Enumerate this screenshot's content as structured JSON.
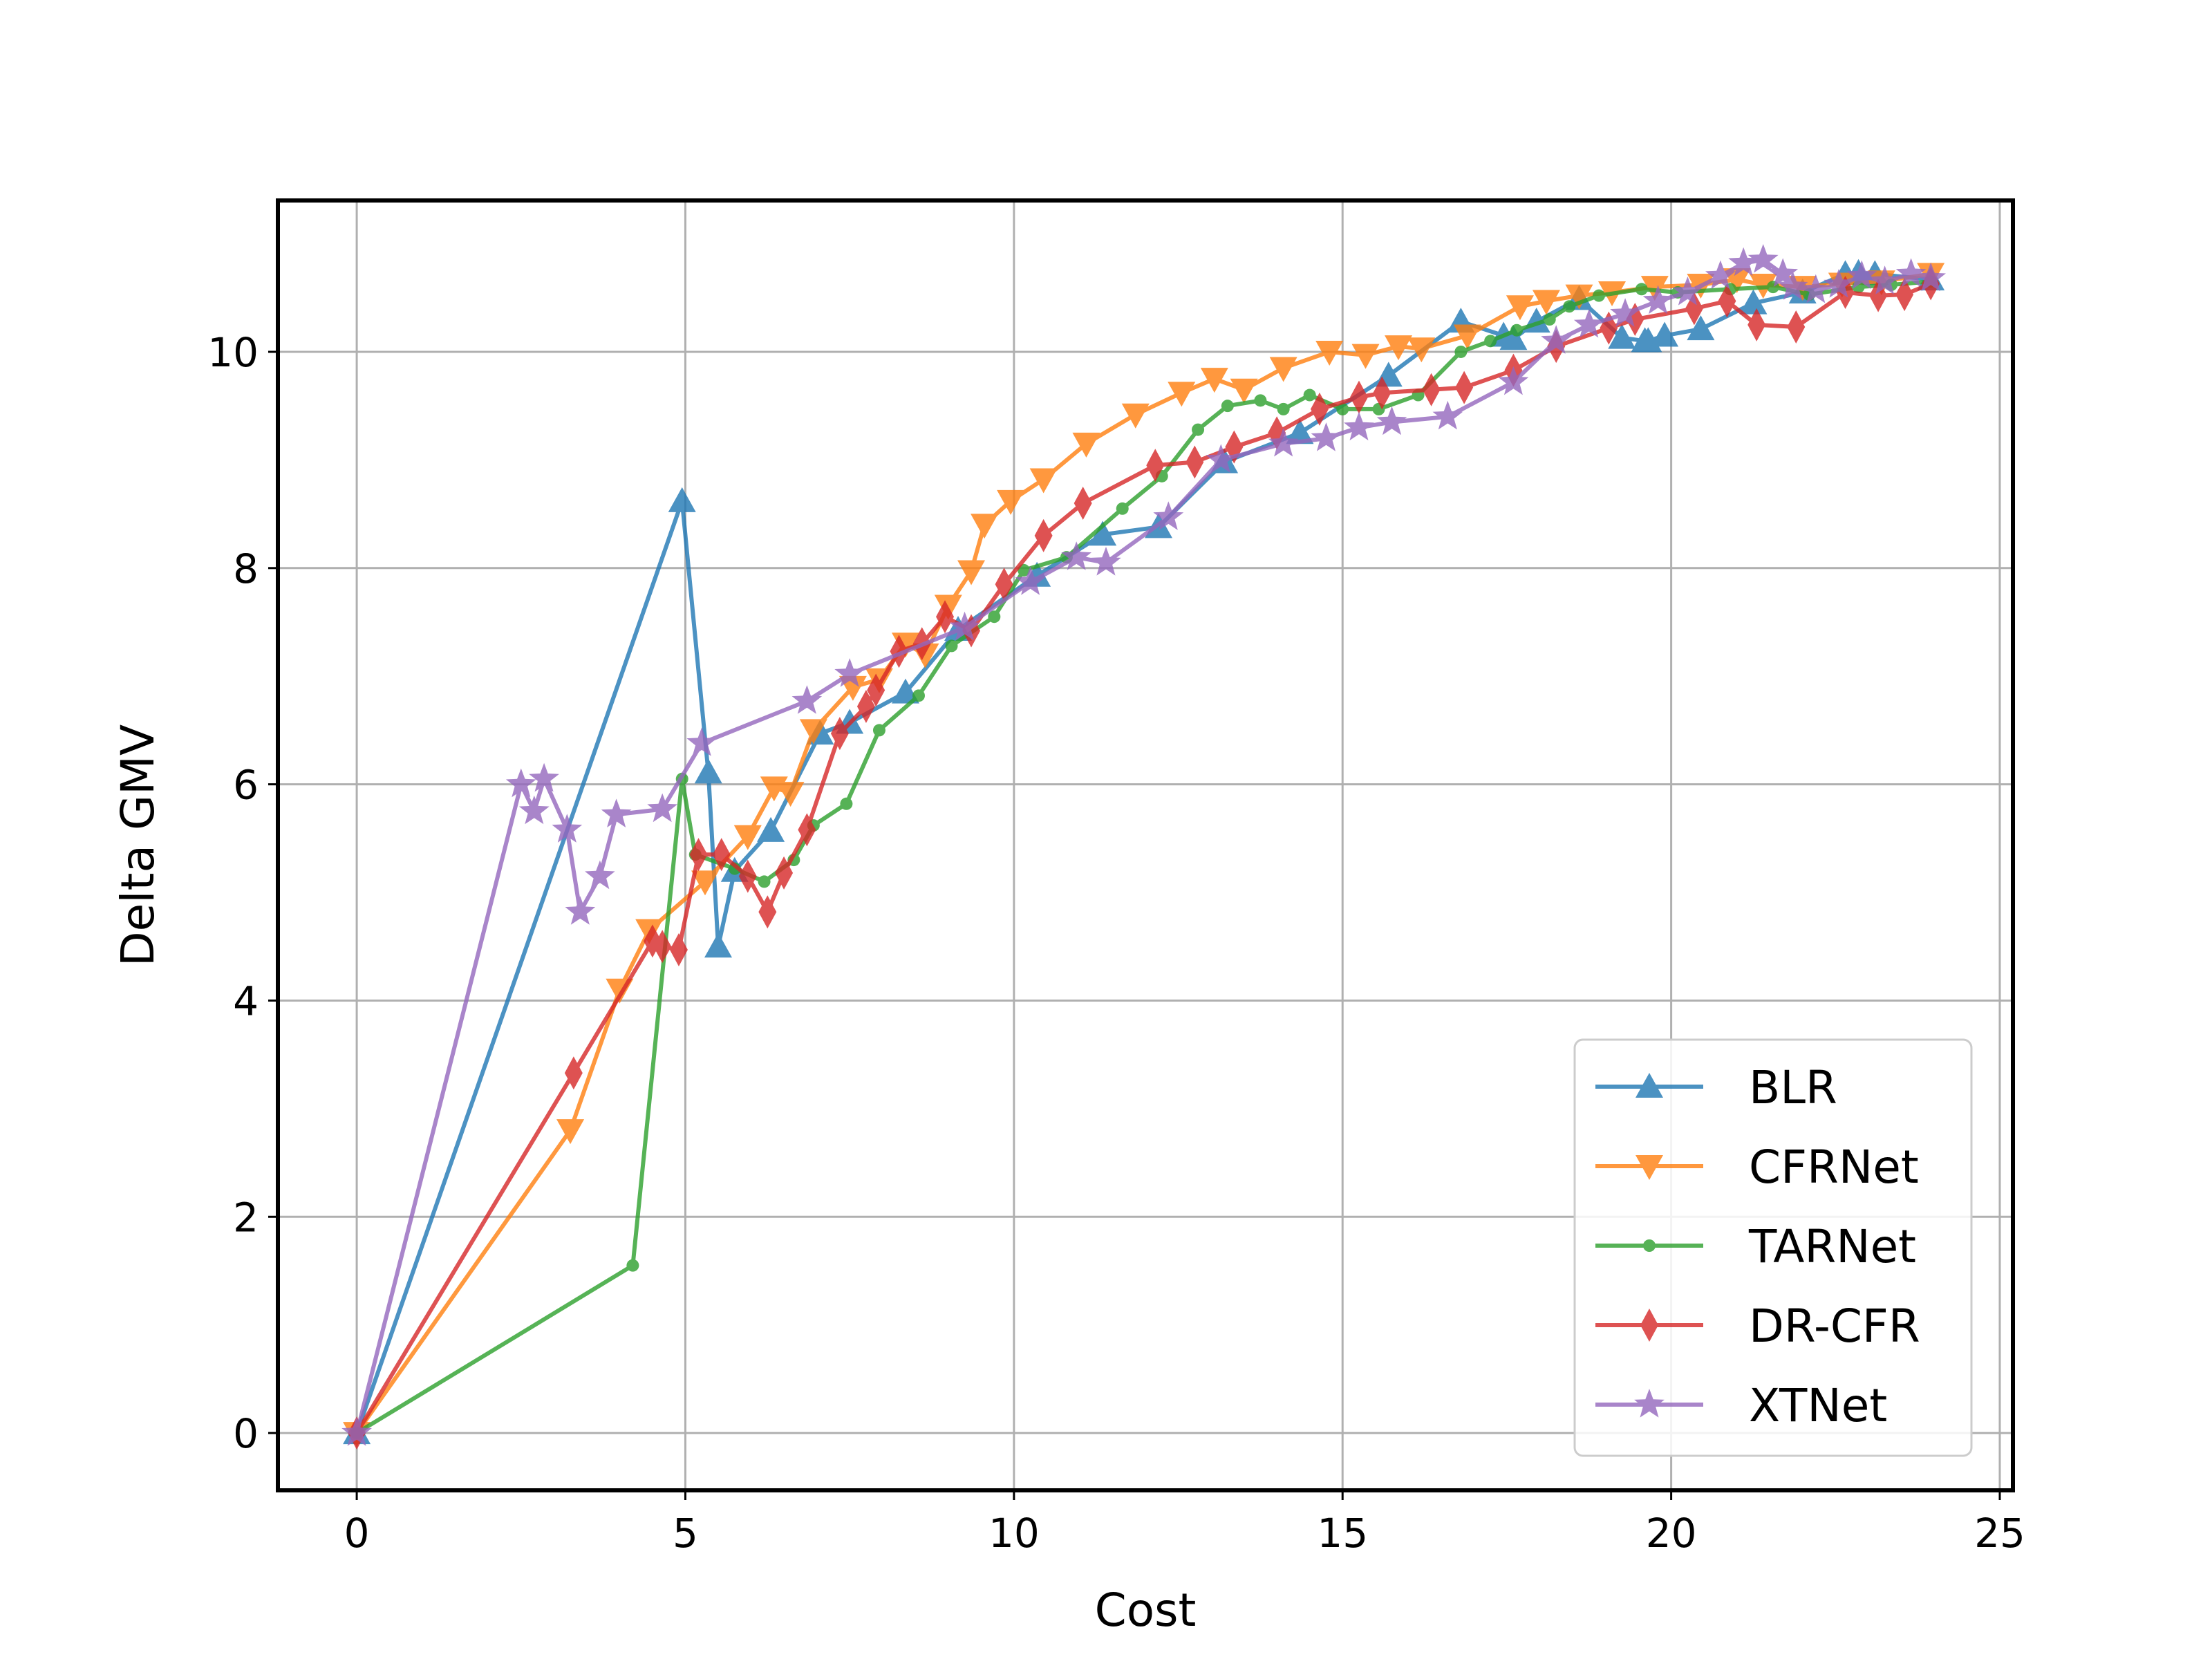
{
  "chart_data": {
    "type": "line",
    "title": "",
    "xlabel": "Cost",
    "ylabel": "Delta GMV",
    "xlim": [
      -1.2,
      25.2
    ],
    "ylim": [
      -0.53,
      11.4
    ],
    "xticks": [
      0,
      5,
      10,
      15,
      20,
      25
    ],
    "yticks": [
      0,
      2,
      4,
      6,
      8,
      10
    ],
    "xtick_labels": [
      "0",
      "5",
      "10",
      "15",
      "20",
      "25"
    ],
    "ytick_labels": [
      "0",
      "2",
      "4",
      "6",
      "8",
      "10"
    ],
    "grid": true,
    "legend_position": "lower-right",
    "series": [
      {
        "name": "BLR",
        "color": "#1f77b4",
        "marker": "triangle-up",
        "x": [
          0,
          4.95,
          5.35,
          5.5,
          5.75,
          6.3,
          7.05,
          7.5,
          8.35,
          9.15,
          10.35,
          11.35,
          12.2,
          13.2,
          14.35,
          15.7,
          16.8,
          17.45,
          17.6,
          17.95,
          18.6,
          19.25,
          19.6,
          19.65,
          19.9,
          20.45,
          21.25,
          22.0,
          22.65,
          22.85,
          23.1,
          23.95
        ],
        "values": [
          0,
          8.62,
          6.11,
          4.5,
          5.2,
          5.57,
          6.47,
          6.57,
          6.85,
          7.43,
          7.93,
          8.31,
          8.38,
          8.98,
          9.25,
          9.78,
          10.28,
          10.15,
          10.12,
          10.28,
          10.49,
          10.13,
          10.1,
          10.1,
          10.15,
          10.21,
          10.45,
          10.55,
          10.72,
          10.73,
          10.72,
          10.67
        ]
      },
      {
        "name": "CFRNet",
        "color": "#ff7f0e",
        "marker": "triangle-down",
        "x": [
          0,
          3.25,
          4.0,
          4.45,
          5.3,
          5.95,
          6.35,
          6.6,
          6.95,
          7.55,
          7.95,
          8.35,
          8.65,
          9.0,
          9.35,
          9.55,
          9.95,
          10.45,
          11.1,
          11.85,
          12.55,
          13.05,
          13.5,
          14.1,
          14.8,
          15.35,
          15.85,
          16.2,
          16.9,
          17.7,
          18.1,
          18.6,
          19.1,
          19.75,
          20.45,
          21.0,
          21.4,
          22.0,
          22.6,
          23.2,
          23.95
        ],
        "values": [
          0,
          2.8,
          4.1,
          4.65,
          5.1,
          5.52,
          5.97,
          5.92,
          6.5,
          6.9,
          6.97,
          7.3,
          7.2,
          7.65,
          7.97,
          8.4,
          8.62,
          8.82,
          9.15,
          9.42,
          9.62,
          9.75,
          9.65,
          9.85,
          10.0,
          9.97,
          10.05,
          10.03,
          10.15,
          10.42,
          10.47,
          10.52,
          10.55,
          10.6,
          10.62,
          10.67,
          10.62,
          10.6,
          10.63,
          10.65,
          10.72
        ]
      },
      {
        "name": "TARNet",
        "color": "#2ca02c",
        "marker": "point",
        "x": [
          0,
          4.2,
          4.95,
          5.15,
          5.75,
          6.2,
          6.65,
          6.95,
          7.45,
          7.95,
          8.55,
          9.05,
          9.7,
          10.15,
          10.8,
          11.65,
          12.25,
          12.8,
          13.25,
          13.75,
          14.1,
          14.5,
          15.0,
          15.55,
          16.15,
          16.8,
          17.25,
          17.65,
          18.15,
          18.45,
          18.9,
          19.55,
          20.1,
          20.9,
          21.55,
          22.1,
          22.85,
          23.35,
          23.95
        ],
        "values": [
          0,
          1.55,
          6.05,
          5.35,
          5.22,
          5.1,
          5.3,
          5.62,
          5.82,
          6.5,
          6.82,
          7.28,
          7.55,
          7.98,
          8.1,
          8.55,
          8.85,
          9.28,
          9.5,
          9.55,
          9.47,
          9.6,
          9.47,
          9.47,
          9.6,
          10.0,
          10.1,
          10.2,
          10.3,
          10.42,
          10.52,
          10.58,
          10.55,
          10.58,
          10.6,
          10.53,
          10.6,
          10.62,
          10.65
        ]
      },
      {
        "name": "DR-CFR",
        "color": "#d62728",
        "marker": "thin-diamond",
        "x": [
          0,
          3.3,
          4.5,
          4.65,
          4.9,
          5.2,
          5.55,
          5.95,
          6.25,
          6.5,
          6.85,
          7.35,
          7.75,
          7.9,
          8.25,
          8.6,
          8.95,
          9.35,
          9.85,
          10.45,
          11.05,
          12.15,
          12.75,
          13.35,
          14.0,
          14.65,
          15.25,
          15.6,
          16.35,
          16.85,
          17.6,
          18.25,
          19.05,
          19.45,
          20.35,
          20.85,
          21.3,
          21.9,
          22.65,
          23.15,
          23.55,
          23.95
        ],
        "values": [
          0,
          3.33,
          4.55,
          4.5,
          4.47,
          5.35,
          5.35,
          5.15,
          4.82,
          5.18,
          5.58,
          6.47,
          6.72,
          6.87,
          7.23,
          7.3,
          7.55,
          7.42,
          7.85,
          8.3,
          8.6,
          8.95,
          8.98,
          9.12,
          9.25,
          9.47,
          9.58,
          9.62,
          9.65,
          9.67,
          9.83,
          10.05,
          10.22,
          10.3,
          10.4,
          10.47,
          10.25,
          10.23,
          10.55,
          10.52,
          10.53,
          10.63
        ]
      },
      {
        "name": "XTNet",
        "color": "#9467bd",
        "marker": "star",
        "x": [
          0,
          2.5,
          2.7,
          2.85,
          3.2,
          3.4,
          3.7,
          3.95,
          4.65,
          5.25,
          6.85,
          7.5,
          9.25,
          10.25,
          10.95,
          11.4,
          12.35,
          13.15,
          14.1,
          14.75,
          15.25,
          15.75,
          16.6,
          17.6,
          18.25,
          18.75,
          19.3,
          19.8,
          20.25,
          20.75,
          21.1,
          21.4,
          21.7,
          21.85,
          22.2,
          22.55,
          22.9,
          23.25,
          23.65,
          23.95
        ],
        "values": [
          0,
          6.0,
          5.75,
          6.05,
          5.58,
          4.82,
          5.15,
          5.72,
          5.77,
          6.38,
          6.77,
          7.02,
          7.45,
          7.87,
          8.1,
          8.05,
          8.47,
          9.0,
          9.15,
          9.2,
          9.3,
          9.35,
          9.4,
          9.72,
          10.1,
          10.25,
          10.35,
          10.47,
          10.55,
          10.7,
          10.82,
          10.85,
          10.72,
          10.6,
          10.57,
          10.62,
          10.7,
          10.65,
          10.72,
          10.68
        ]
      }
    ]
  }
}
